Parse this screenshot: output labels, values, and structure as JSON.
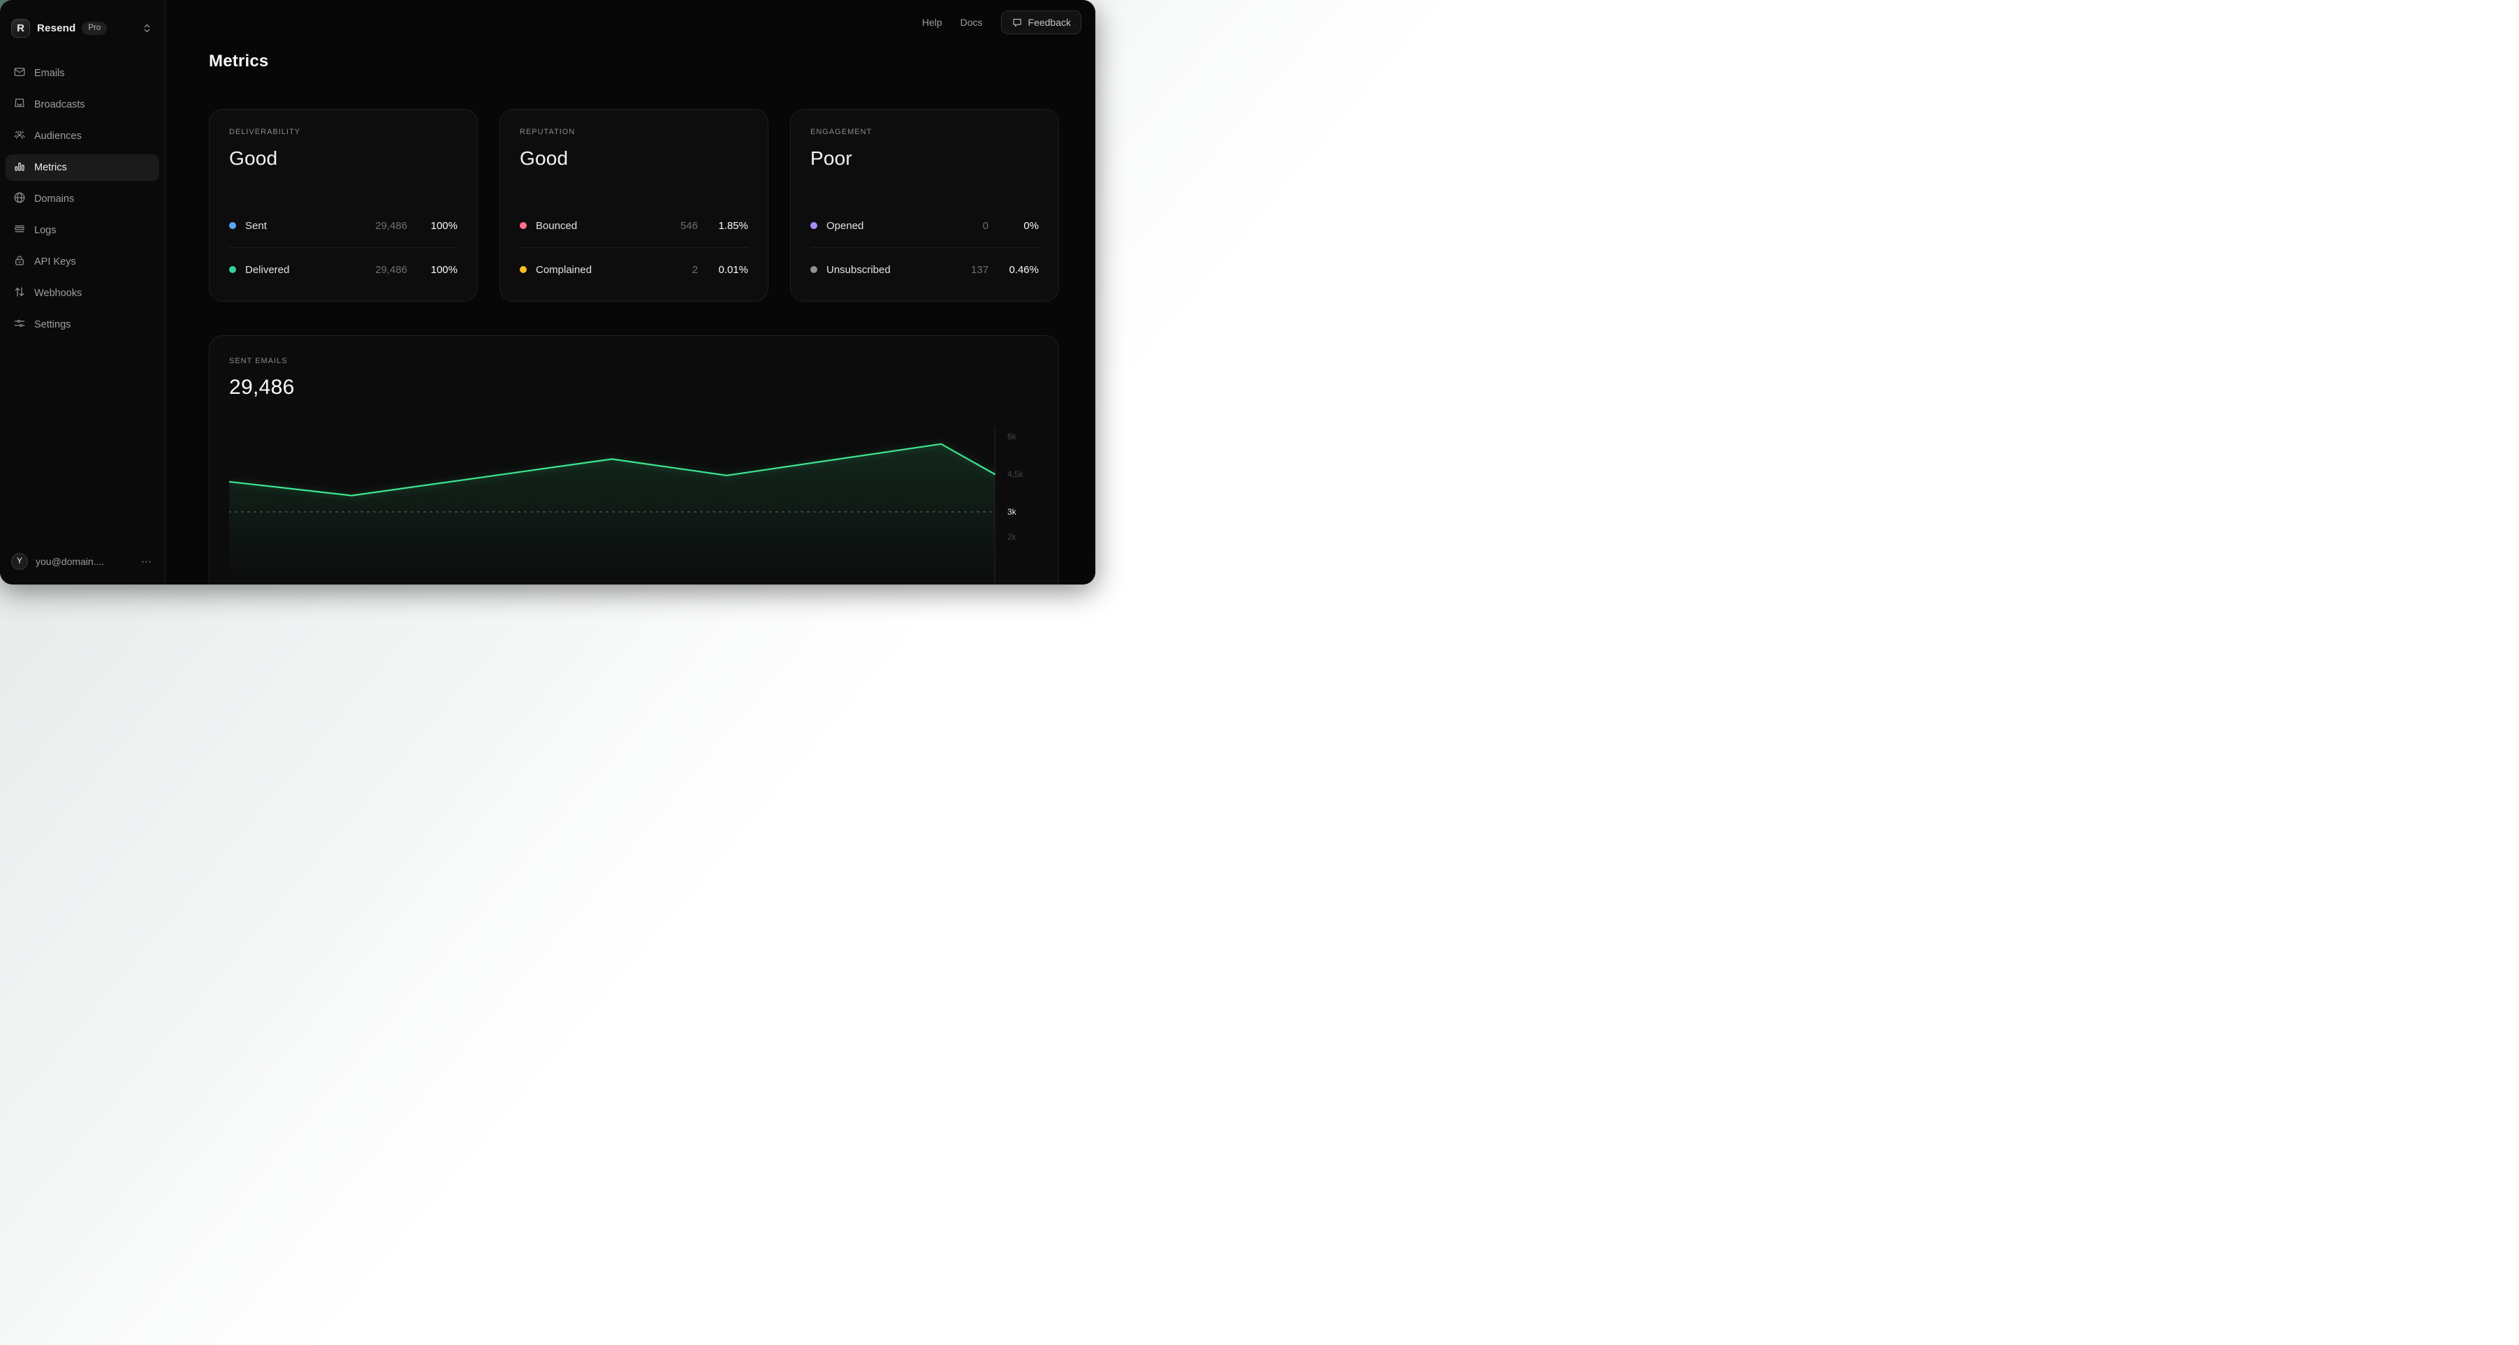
{
  "brand": {
    "name": "Resend",
    "logo_letter": "R",
    "plan_badge": "Pro"
  },
  "topbar": {
    "links": [
      {
        "label": "Help"
      },
      {
        "label": "Docs"
      }
    ],
    "feedback_label": "Feedback"
  },
  "sidebar": {
    "items": [
      {
        "label": "Emails"
      },
      {
        "label": "Broadcasts"
      },
      {
        "label": "Audiences"
      },
      {
        "label": "Metrics",
        "active": true
      },
      {
        "label": "Domains"
      },
      {
        "label": "Logs"
      },
      {
        "label": "API Keys"
      },
      {
        "label": "Webhooks"
      },
      {
        "label": "Settings"
      }
    ],
    "user": {
      "initial": "Y",
      "email": "you@domain....",
      "menu": "⋯"
    }
  },
  "page": {
    "title": "Metrics"
  },
  "cards": [
    {
      "label": "DELIVERABILITY",
      "status": "Good",
      "rows": [
        {
          "color": "#58a6f7",
          "label": "Sent",
          "count": "29,486",
          "pct": "100%"
        },
        {
          "color": "#34d399",
          "label": "Delivered",
          "count": "29,486",
          "pct": "100%"
        }
      ]
    },
    {
      "label": "REPUTATION",
      "status": "Good",
      "rows": [
        {
          "color": "#fb7185",
          "label": "Bounced",
          "count": "546",
          "pct": "1.85%"
        },
        {
          "color": "#fbbf24",
          "label": "Complained",
          "count": "2",
          "pct": "0.01%"
        }
      ]
    },
    {
      "label": "ENGAGEMENT",
      "status": "Poor",
      "rows": [
        {
          "color": "#a78bfa",
          "label": "Opened",
          "count": "0",
          "pct": "0%"
        },
        {
          "color": "#8e9196",
          "label": "Unsubscribed",
          "count": "137",
          "pct": "0.46%"
        }
      ]
    }
  ],
  "chart_card": {
    "label": "SENT EMAILS",
    "total": "29,486"
  },
  "chart_data": {
    "type": "area",
    "title": "Sent Emails",
    "total": 29486,
    "points": [
      {
        "f": 0.0,
        "value": 4200
      },
      {
        "f": 0.16,
        "value": 3650
      },
      {
        "f": 0.5,
        "value": 5100
      },
      {
        "f": 0.65,
        "value": 4450
      },
      {
        "f": 0.93,
        "value": 5700
      },
      {
        "f": 1.0,
        "value": 4500
      }
    ],
    "yticks": [
      {
        "label": "6k",
        "value": 6000,
        "highlight": false
      },
      {
        "label": "4,5k",
        "value": 4500,
        "highlight": false
      },
      {
        "label": "3k",
        "value": 3000,
        "highlight": true
      },
      {
        "label": "2k",
        "value": 2000,
        "highlight": false
      }
    ],
    "reference_value": 3000,
    "line_color": "#3ee690",
    "fill_color_top": "rgba(62,230,144,0.12)",
    "grid": "right-axis-only",
    "legend": "none"
  }
}
